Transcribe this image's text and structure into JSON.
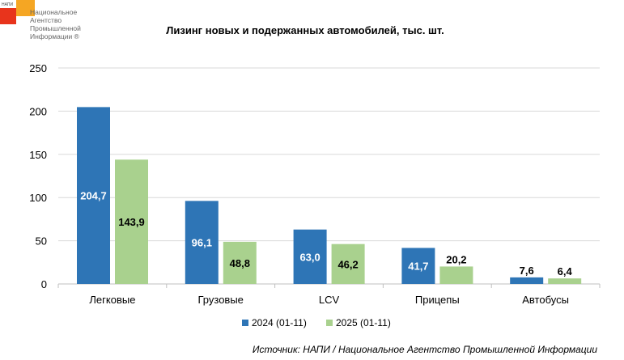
{
  "logo": {
    "abbr": "НАПИ",
    "lines": [
      "Национальное",
      "Агентство",
      "Промышленной",
      "Информации ®"
    ]
  },
  "chart_data": {
    "type": "bar",
    "title": "Лизинг новых и подержанных автомобилей, тыс. шт.",
    "categories": [
      "Легковые",
      "Грузовые",
      "LCV",
      "Прицепы",
      "Автобусы"
    ],
    "series": [
      {
        "name": "2024 (01-11)",
        "values": [
          204.7,
          96.1,
          63.0,
          41.7,
          7.6
        ],
        "labels": [
          "204,7",
          "96,1",
          "63,0",
          "41,7",
          "7,6"
        ],
        "color": "#2E75B6"
      },
      {
        "name": "2025 (01-11)",
        "values": [
          143.9,
          48.8,
          46.2,
          20.2,
          6.4
        ],
        "labels": [
          "143,9",
          "48,8",
          "46,2",
          "20,2",
          "6,4"
        ],
        "color": "#A9D18E"
      }
    ],
    "ylim": [
      0,
      250
    ],
    "yticks": [
      "0",
      "50",
      "100",
      "150",
      "200",
      "250"
    ],
    "grid": true,
    "legend": "bottom"
  },
  "source": "Источник: НАПИ / Национальное Агентство Промышленной Информации"
}
